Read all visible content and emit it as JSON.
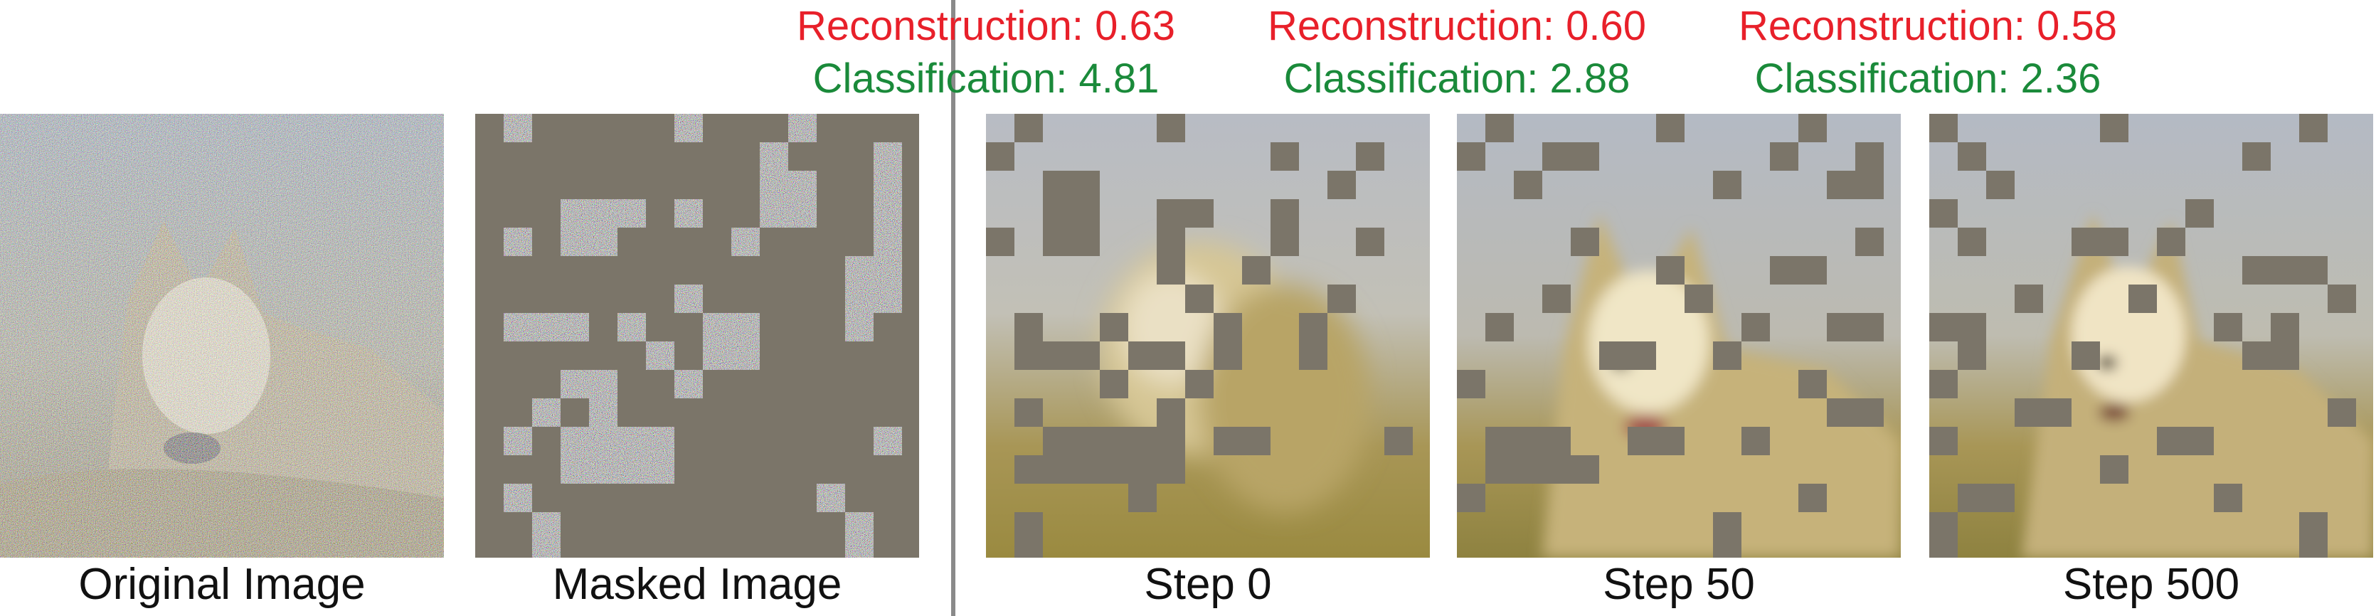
{
  "panels": [
    {
      "id": "original",
      "caption": "Original Image"
    },
    {
      "id": "masked",
      "caption": "Masked Image"
    },
    {
      "id": "step0",
      "caption": "Step 0",
      "reconstruction": "Reconstruction: 0.63",
      "classification": "Classification: 4.81"
    },
    {
      "id": "step50",
      "caption": "Step 50",
      "reconstruction": "Reconstruction: 0.60",
      "classification": "Classification: 2.88"
    },
    {
      "id": "step500",
      "caption": "Step 500",
      "reconstruction": "Reconstruction: 0.58",
      "classification": "Classification: 2.36"
    }
  ],
  "colors": {
    "reconstruction_text": "#e8202a",
    "classification_text": "#1a8a3a",
    "mask_gray": "#7b7569",
    "divider": "#8a8a8a"
  }
}
